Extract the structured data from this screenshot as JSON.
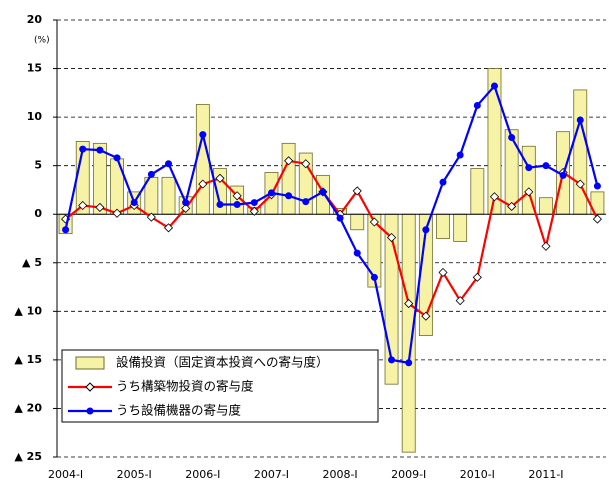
{
  "chart_data": {
    "type": "bar",
    "y_unit": "(%)",
    "categories": [
      "2004-I",
      null,
      null,
      null,
      "2005-I",
      null,
      null,
      null,
      "2006-I",
      null,
      null,
      null,
      "2007-I",
      null,
      null,
      null,
      "2008-I",
      null,
      null,
      null,
      "2009-I",
      null,
      null,
      null,
      "2010-I",
      null,
      null,
      null,
      "2011-I",
      null,
      null,
      null
    ],
    "series": [
      {
        "name": "設備投資（固定資本投資への寄与度）",
        "type": "bar",
        "color": "#f7f3a6",
        "edge": "#6b6b2a",
        "values": [
          -2,
          7.5,
          7.3,
          5.7,
          2.3,
          3.8,
          3.8,
          1.8,
          11.3,
          4.7,
          2.9,
          0.7,
          4.3,
          7.3,
          6.3,
          4,
          0.6,
          -1.6,
          -7.5,
          -17.5,
          -24.5,
          -12.5,
          -2.5,
          -2.8,
          4.7,
          15,
          8.7,
          7,
          1.7,
          8.5,
          12.8,
          2.3
        ]
      },
      {
        "name": "うち構築物投資の寄与度",
        "type": "line",
        "marker": "diamond",
        "color": "#ff0000",
        "values": [
          -0.5,
          0.9,
          0.7,
          0.1,
          0.9,
          -0.3,
          -1.4,
          0.6,
          3.1,
          3.7,
          1.9,
          0.3,
          2.0,
          5.5,
          5.2,
          2.3,
          0.0,
          2.4,
          -0.8,
          -2.4,
          -9.2,
          -10.5,
          -6.0,
          -8.9,
          -6.5,
          1.8,
          0.8,
          2.3,
          -3.3,
          4.3,
          3.1,
          -0.5
        ]
      },
      {
        "name": "うち設備機器の寄与度",
        "type": "line",
        "marker": "circle",
        "color": "#0000ff",
        "values": [
          -1.6,
          6.7,
          6.6,
          5.8,
          1.2,
          4.1,
          5.2,
          1.2,
          8.2,
          1.0,
          1.0,
          1.2,
          2.2,
          1.9,
          1.3,
          2.3,
          -0.4,
          -4.0,
          -6.5,
          -15.0,
          -15.3,
          -1.6,
          3.3,
          6.1,
          11.2,
          13.2,
          7.9,
          4.8,
          5.0,
          4.0,
          9.7,
          2.9
        ]
      }
    ],
    "ylim": [
      -25,
      20
    ],
    "yticks": [
      20,
      15,
      10,
      5,
      0,
      {
        "value": -5,
        "label": "▲ 5"
      },
      {
        "value": -10,
        "label": "▲ 10"
      },
      {
        "value": -15,
        "label": "▲ 15"
      },
      {
        "value": -20,
        "label": "▲ 20"
      },
      {
        "value": -25,
        "label": "▲ 25"
      }
    ],
    "grid": true,
    "legend": "lower-left"
  }
}
